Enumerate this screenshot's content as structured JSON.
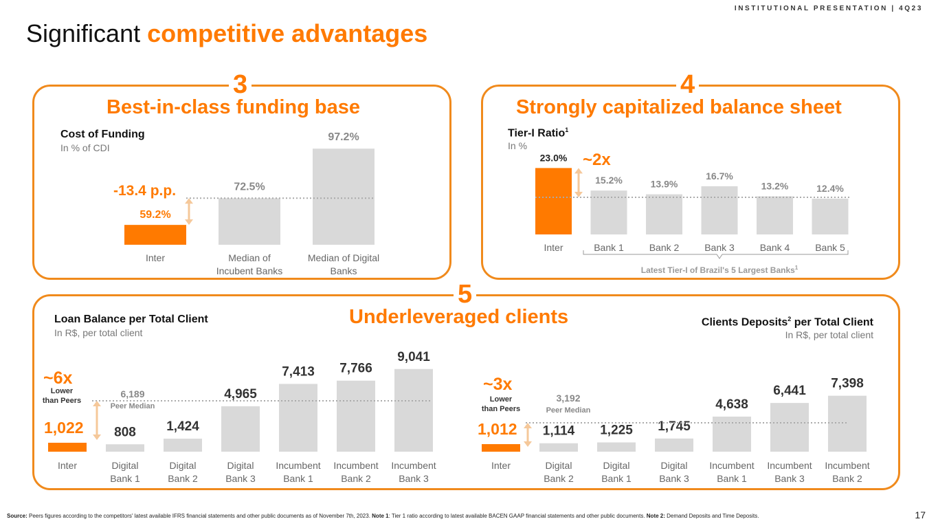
{
  "header": "INSTITUTIONAL PRESENTATION | 4Q23",
  "title": {
    "normal": "Significant",
    "highlight": "competitive advantages"
  },
  "panels": {
    "funding": {
      "number": "3",
      "title": "Best-in-class funding base",
      "label": "Cost of Funding",
      "sublabel": "In % of CDI",
      "annotation": "-13.4 p.p."
    },
    "capital": {
      "number": "4",
      "title": "Strongly capitalized balance sheet",
      "label": "Tier-I Ratio",
      "label_sup": "1",
      "sublabel": "In %",
      "annotation": "~2x",
      "bracket_label": "Latest Tier-I of Brazil's 5 Largest Banks",
      "bracket_sup": "1"
    },
    "clients": {
      "number": "5",
      "title": "Underleveraged clients"
    },
    "loans": {
      "label": "Loan Balance per Total Client",
      "sublabel": "In R$, per total client",
      "multiple": "~6x",
      "multiple_note": [
        "Lower",
        "than Peers"
      ],
      "median_value": "6,189",
      "median_label": "Peer Median"
    },
    "deposits": {
      "label": "Clients Deposits",
      "label_sup": "2",
      "label_rest": " per Total Client",
      "sublabel": "In R$, per total client",
      "multiple": "~3x",
      "multiple_note": [
        "Lower",
        "than Peers"
      ],
      "median_value": "3,192",
      "median_label": "Peer Median"
    }
  },
  "chart_data": [
    {
      "type": "bar",
      "title": "Cost of Funding",
      "ylabel": "In % of CDI",
      "categories": [
        "Inter",
        "Median of Incubent Banks",
        "Median of Digital Banks"
      ],
      "category_lines": [
        [
          "Inter"
        ],
        [
          "Median of",
          "Incubent Banks"
        ],
        [
          "Median of Digital",
          "Banks"
        ]
      ],
      "values": [
        59.2,
        72.5,
        97.2
      ],
      "labels": [
        "59.2%",
        "72.5%",
        "97.2%"
      ],
      "highlight_index": 0,
      "reference_value": 72.5,
      "colors": {
        "highlight": "#ff7a00",
        "other": "#d9d9d9"
      }
    },
    {
      "type": "bar",
      "title": "Tier-I Ratio",
      "ylabel": "In %",
      "categories": [
        "Inter",
        "Bank 1",
        "Bank 2",
        "Bank 3",
        "Bank 4",
        "Bank 5"
      ],
      "category_lines": [
        [
          "Inter"
        ],
        [
          "Bank 1"
        ],
        [
          "Bank 2"
        ],
        [
          "Bank 3"
        ],
        [
          "Bank 4"
        ],
        [
          "Bank 5"
        ]
      ],
      "values": [
        23.0,
        15.2,
        13.9,
        16.7,
        13.2,
        12.4
      ],
      "labels": [
        "23.0%",
        "15.2%",
        "13.9%",
        "16.7%",
        "13.2%",
        "12.4%"
      ],
      "highlight_index": 0,
      "reference_value": 13.9,
      "colors": {
        "highlight": "#ff7a00",
        "other": "#d9d9d9"
      }
    },
    {
      "type": "bar",
      "title": "Loan Balance per Total Client",
      "ylabel": "In R$, per total client",
      "categories": [
        "Inter",
        "Digital Bank 1",
        "Digital Bank 2",
        "Digital Bank 3",
        "Incumbent Bank 1",
        "Incumbent Bank 2",
        "Incumbent Bank 3"
      ],
      "category_lines": [
        [
          "Inter"
        ],
        [
          "Digital",
          "Bank 1"
        ],
        [
          "Digital",
          "Bank 2"
        ],
        [
          "Digital",
          "Bank 3"
        ],
        [
          "Incumbent",
          "Bank 1"
        ],
        [
          "Incumbent",
          "Bank 2"
        ],
        [
          "Incumbent",
          "Bank 3"
        ]
      ],
      "values": [
        1022,
        808,
        1424,
        4965,
        7413,
        7766,
        9041
      ],
      "labels": [
        "1,022",
        "808",
        "1,424",
        "4,965",
        "7,413",
        "7,766",
        "9,041"
      ],
      "highlight_index": 0,
      "reference_value": 6189,
      "colors": {
        "highlight": "#ff7a00",
        "other": "#d9d9d9"
      }
    },
    {
      "type": "bar",
      "title": "Clients Deposits per Total Client",
      "ylabel": "In R$, per total client",
      "categories": [
        "Inter",
        "Digital Bank 2",
        "Digital Bank 1",
        "Digital Bank 3",
        "Incumbent Bank 1",
        "Incumbent Bank 3",
        "Incumbent Bank 2"
      ],
      "category_lines": [
        [
          "Inter"
        ],
        [
          "Digital",
          "Bank 2"
        ],
        [
          "Digital",
          "Bank 1"
        ],
        [
          "Digital",
          "Bank 3"
        ],
        [
          "Incumbent",
          "Bank 1"
        ],
        [
          "Incumbent",
          "Bank 3"
        ],
        [
          "Incumbent",
          "Bank 2"
        ]
      ],
      "values": [
        1012,
        1114,
        1225,
        1745,
        4638,
        6441,
        7398
      ],
      "labels": [
        "1,012",
        "1,114",
        "1,225",
        "1,745",
        "4,638",
        "6,441",
        "7,398"
      ],
      "highlight_index": 0,
      "reference_value": 3192,
      "colors": {
        "highlight": "#ff7a00",
        "other": "#d9d9d9"
      }
    }
  ],
  "footer": {
    "source_label": "Source:",
    "source_text": " Peers figures according to the competitors' latest available IFRS financial statements and other public documents as of November 7th, 2023. ",
    "note1_label": "Note 1",
    "note1_text": ": Tier 1 ratio according to latest available BACEN GAAP financial statements and other public documents. ",
    "note2_label": "Note 2:",
    "note2_text": " Demand Deposits and Time Deposits."
  },
  "page_number": "17"
}
